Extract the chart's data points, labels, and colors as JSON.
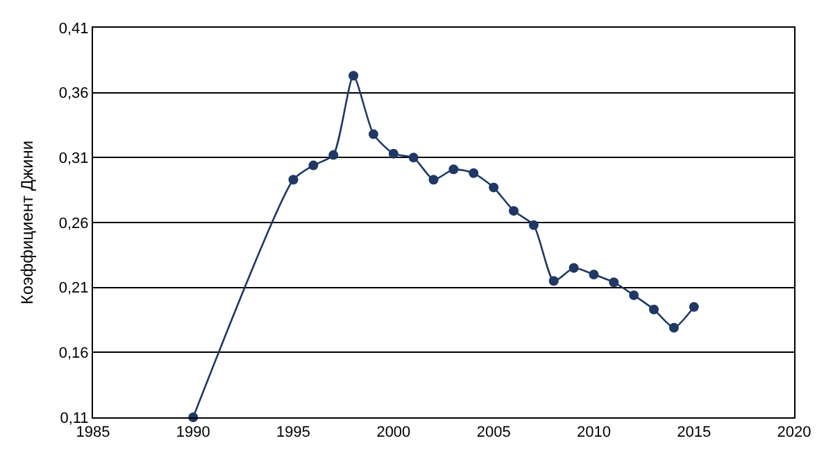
{
  "chart_data": {
    "type": "line",
    "ylabel": "Коэффициент Джини",
    "x": [
      1990,
      1995,
      1996,
      1997,
      1998,
      1999,
      2000,
      2001,
      2002,
      2003,
      2004,
      2005,
      2006,
      2007,
      2008,
      2009,
      2010,
      2011,
      2012,
      2013,
      2014,
      2015
    ],
    "series": [
      {
        "color": "#1f3864",
        "values": [
          0.11,
          0.293,
          0.304,
          0.312,
          0.373,
          0.328,
          0.313,
          0.31,
          0.293,
          0.301,
          0.298,
          0.287,
          0.269,
          0.258,
          0.215,
          0.225,
          0.22,
          0.214,
          0.204,
          0.193,
          0.179,
          0.195
        ]
      }
    ],
    "xlim": [
      1985,
      2020
    ],
    "xticks": [
      1985,
      1990,
      1995,
      2000,
      2005,
      2010,
      2015,
      2020
    ],
    "ylim": [
      0.11,
      0.41
    ],
    "yticks": [
      {
        "value": 0.11,
        "label": "0,11"
      },
      {
        "value": 0.16,
        "label": "0,16"
      },
      {
        "value": 0.21,
        "label": "0,21"
      },
      {
        "value": 0.26,
        "label": "0,26"
      },
      {
        "value": 0.31,
        "label": "0,31"
      },
      {
        "value": 0.36,
        "label": "0,36"
      },
      {
        "value": 0.41,
        "label": "0,41"
      }
    ],
    "grid": "y",
    "marker": "circle",
    "line_style": "solid"
  }
}
